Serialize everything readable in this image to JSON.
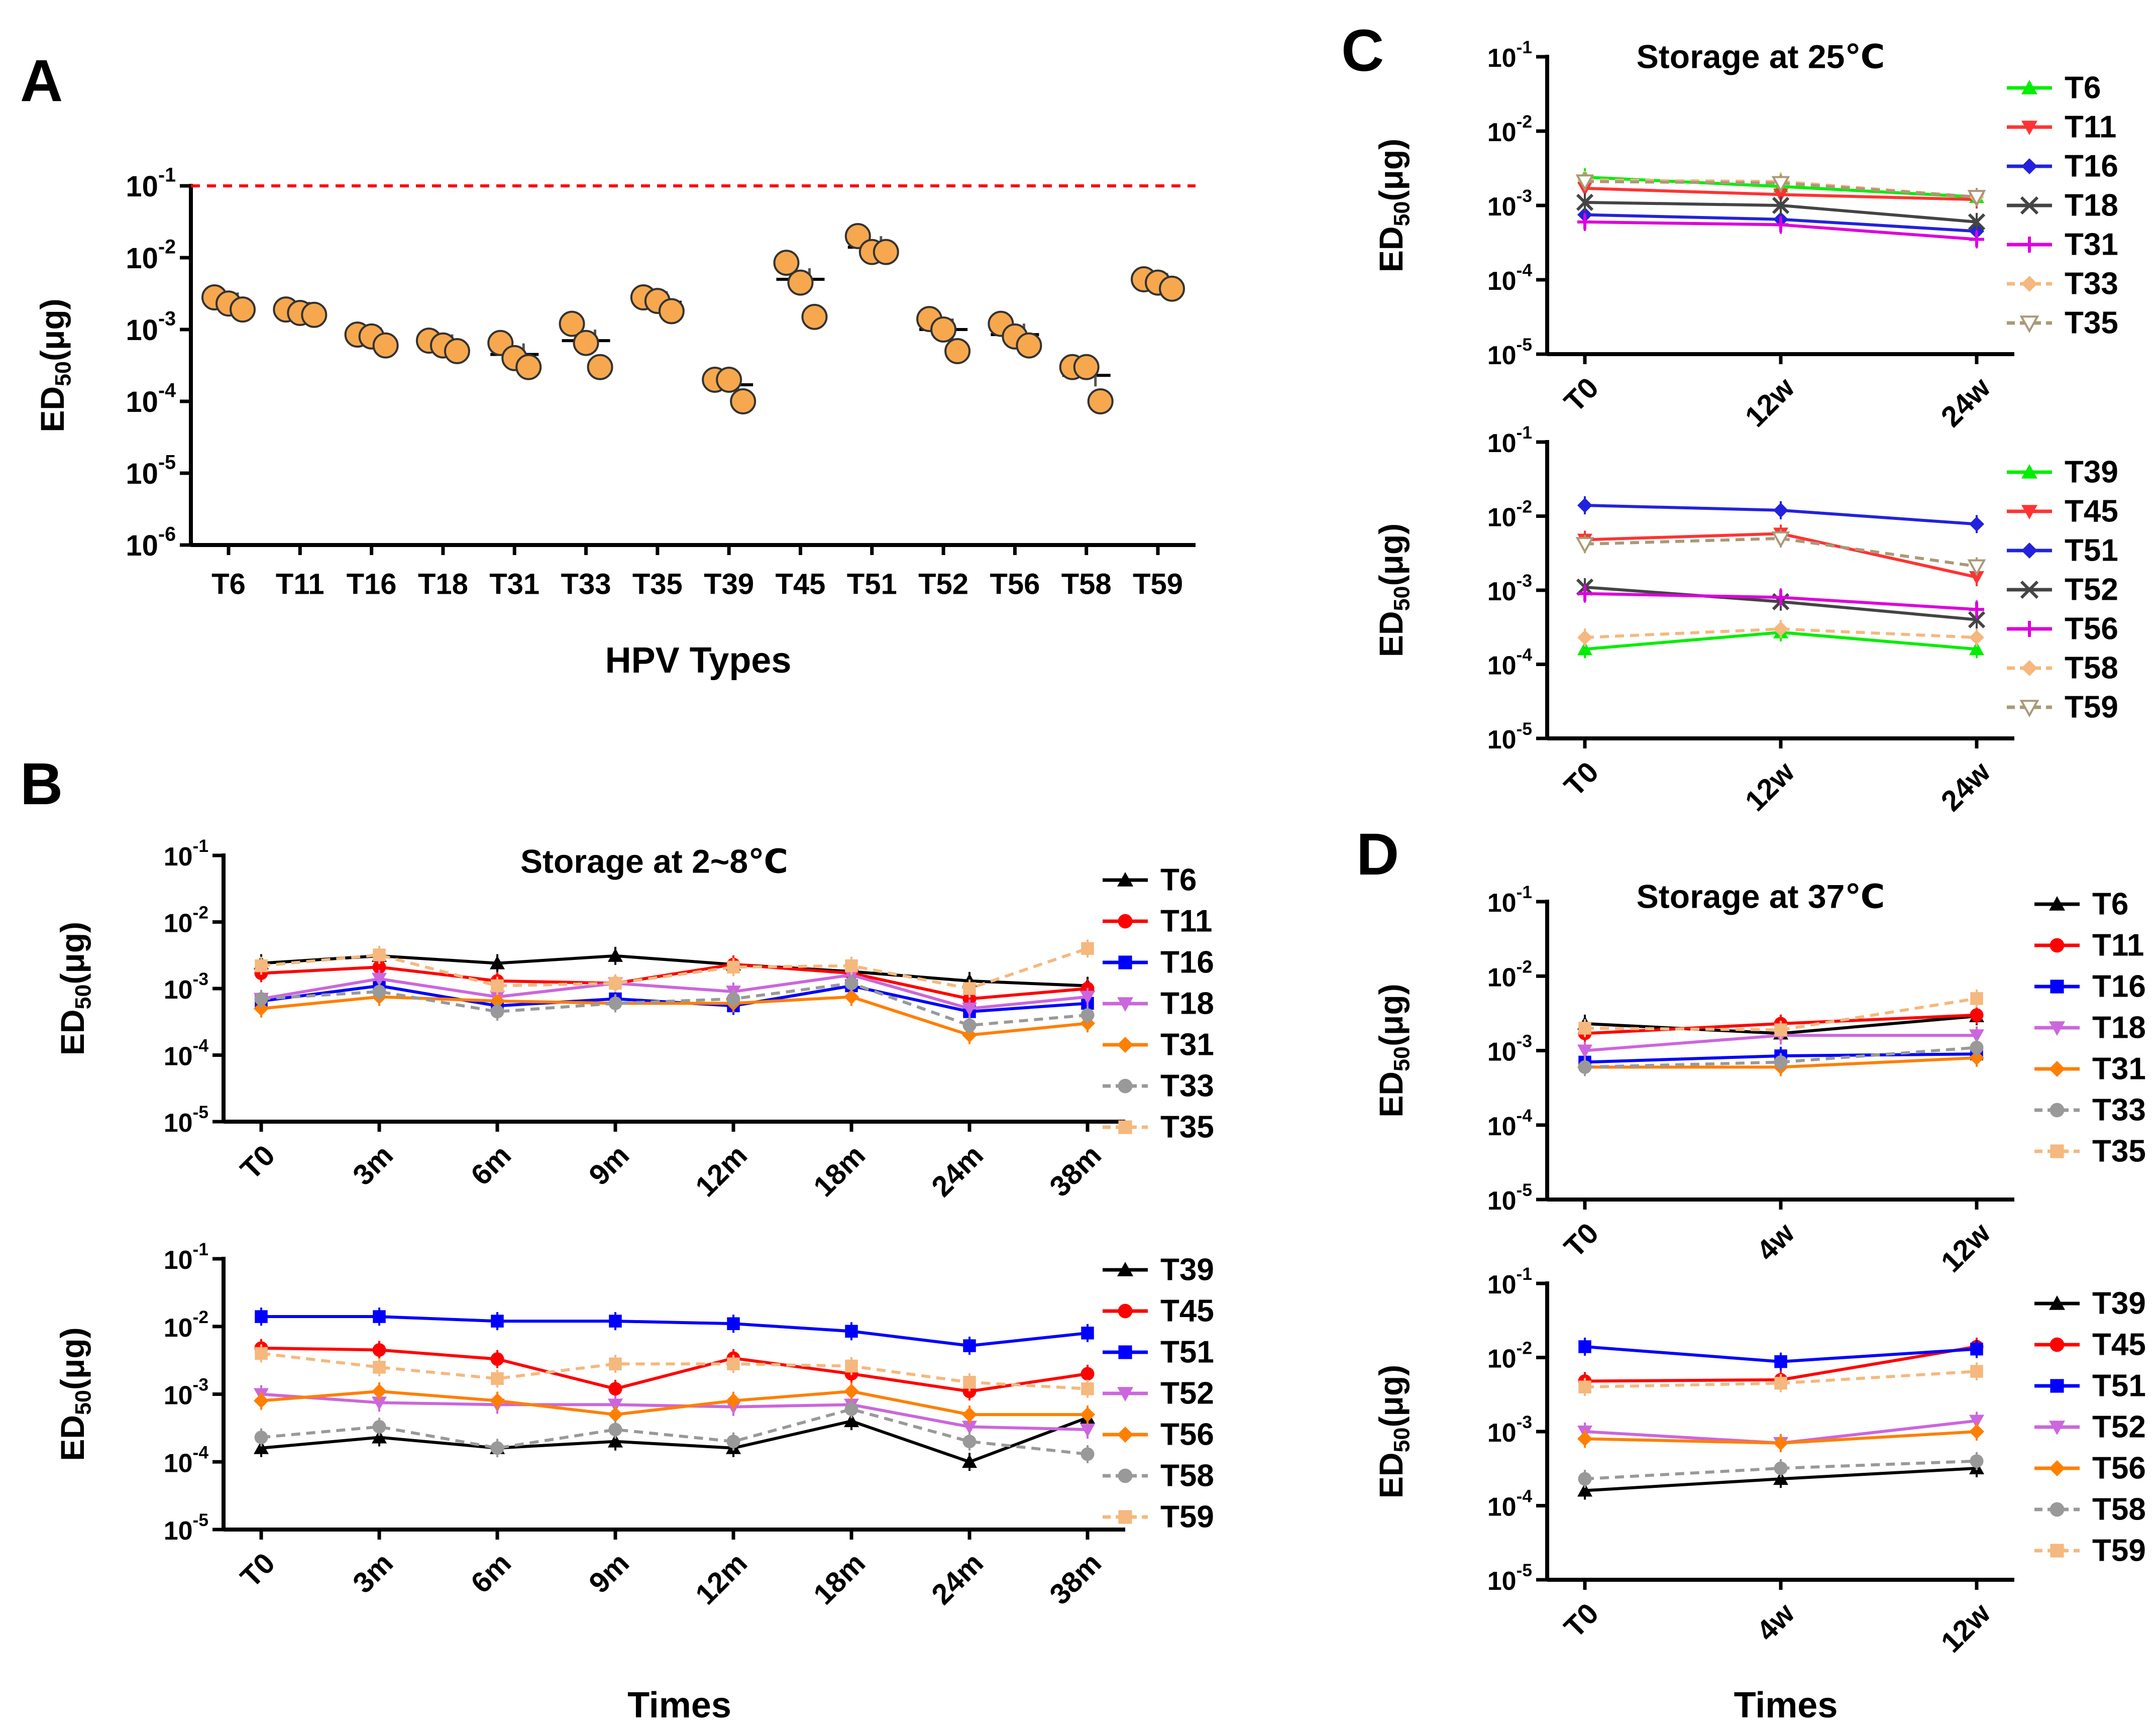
{
  "chart_data": [
    {
      "id": "A",
      "panel_label": "A",
      "type": "scatter",
      "title": "",
      "xlabel": "HPV Types",
      "ylabel": "ED50(μg)",
      "yscale": "log",
      "ylim": [
        1e-06,
        0.1
      ],
      "ytick_exponents": [
        -1,
        -2,
        -3,
        -4,
        -5,
        -6
      ],
      "reference_line": 0.1,
      "categories": [
        "T6",
        "T11",
        "T16",
        "T18",
        "T31",
        "T33",
        "T35",
        "T39",
        "T45",
        "T51",
        "T52",
        "T56",
        "T58",
        "T59"
      ],
      "points": [
        [
          0.0028,
          0.0023,
          0.0019
        ],
        [
          0.0019,
          0.0017,
          0.0016
        ],
        [
          0.00085,
          0.0008,
          0.0006
        ],
        [
          0.0007,
          0.0006,
          0.0005
        ],
        [
          0.00065,
          0.0004,
          0.0003
        ],
        [
          0.0012,
          0.00065,
          0.0003
        ],
        [
          0.0028,
          0.0025,
          0.0018
        ],
        [
          0.0002,
          0.0002,
          0.0001
        ],
        [
          0.0085,
          0.0045,
          0.0015
        ],
        [
          0.02,
          0.012,
          0.012
        ],
        [
          0.0014,
          0.001,
          0.0005
        ],
        [
          0.0012,
          0.0008,
          0.0006
        ],
        [
          0.0003,
          0.0003,
          0.0001
        ],
        [
          0.005,
          0.0045,
          0.0037
        ]
      ],
      "means": [
        0.0023,
        0.0017,
        0.00075,
        0.0006,
        0.00045,
        0.0007,
        0.0024,
        0.00017,
        0.005,
        0.014,
        0.001,
        0.00085,
        0.00023,
        0.0043
      ]
    },
    {
      "id": "B1",
      "panel_label": "B",
      "type": "line",
      "title": "Storage at 2~8℃",
      "xlabel": "",
      "ylabel": "ED50(μg)",
      "yscale": "log",
      "ylim": [
        1e-05,
        0.1
      ],
      "ytick_exponents": [
        -1,
        -2,
        -3,
        -4,
        -5
      ],
      "categories": [
        "T0",
        "3m",
        "6m",
        "9m",
        "12m",
        "18m",
        "24m",
        "38m"
      ],
      "series": [
        {
          "name": "T6",
          "color": "#000000",
          "marker": "triangle-up",
          "dash": false,
          "values": [
            0.0024,
            0.0031,
            0.0024,
            0.0031,
            0.0023,
            0.0018,
            0.0013,
            0.0011
          ]
        },
        {
          "name": "T11",
          "color": "#ff0000",
          "marker": "circle",
          "dash": false,
          "values": [
            0.0017,
            0.0021,
            0.0013,
            0.0012,
            0.0023,
            0.0017,
            0.0007,
            0.001
          ]
        },
        {
          "name": "T16",
          "color": "#0000ff",
          "marker": "square",
          "dash": false,
          "values": [
            0.00065,
            0.0011,
            0.00055,
            0.0007,
            0.00055,
            0.0011,
            0.00045,
            0.0006
          ]
        },
        {
          "name": "T18",
          "color": "#cc66dd",
          "marker": "triangle-down",
          "dash": false,
          "values": [
            0.0007,
            0.0014,
            0.00075,
            0.0012,
            0.0009,
            0.0016,
            0.0005,
            0.00075
          ]
        },
        {
          "name": "T31",
          "color": "#ff7f00",
          "marker": "diamond",
          "dash": false,
          "values": [
            0.0005,
            0.00075,
            0.00065,
            0.0006,
            0.0006,
            0.00075,
            0.0002,
            0.0003
          ]
        },
        {
          "name": "T33",
          "color": "#999999",
          "marker": "circle",
          "dash": true,
          "values": [
            0.0007,
            0.0009,
            0.00045,
            0.0006,
            0.0007,
            0.0012,
            0.00028,
            0.0004
          ]
        },
        {
          "name": "T35",
          "color": "#f5b87e",
          "marker": "square",
          "dash": true,
          "values": [
            0.0022,
            0.0032,
            0.0011,
            0.0012,
            0.0021,
            0.0022,
            0.001,
            0.004
          ]
        }
      ]
    },
    {
      "id": "B2",
      "panel_label": "",
      "type": "line",
      "title": "",
      "xlabel": "Times",
      "ylabel": "ED50(μg)",
      "yscale": "log",
      "ylim": [
        1e-05,
        0.1
      ],
      "ytick_exponents": [
        -1,
        -2,
        -3,
        -4,
        -5
      ],
      "categories": [
        "T0",
        "3m",
        "6m",
        "9m",
        "12m",
        "18m",
        "24m",
        "38m"
      ],
      "series": [
        {
          "name": "T39",
          "color": "#000000",
          "marker": "triangle-up",
          "dash": false,
          "values": [
            0.00016,
            0.00023,
            0.00016,
            0.0002,
            0.00016,
            0.0004,
            0.0001,
            0.00045
          ]
        },
        {
          "name": "T45",
          "color": "#ff0000",
          "marker": "circle",
          "dash": false,
          "values": [
            0.0048,
            0.0045,
            0.0033,
            0.0012,
            0.0034,
            0.002,
            0.0011,
            0.002
          ]
        },
        {
          "name": "T51",
          "color": "#0000ff",
          "marker": "square",
          "dash": false,
          "values": [
            0.014,
            0.014,
            0.012,
            0.012,
            0.011,
            0.0085,
            0.0052,
            0.008
          ]
        },
        {
          "name": "T52",
          "color": "#cc66dd",
          "marker": "triangle-down",
          "dash": false,
          "values": [
            0.001,
            0.00075,
            0.0007,
            0.0007,
            0.00065,
            0.0007,
            0.00033,
            0.0003
          ]
        },
        {
          "name": "T56",
          "color": "#ff7f00",
          "marker": "diamond",
          "dash": false,
          "values": [
            0.0008,
            0.0011,
            0.0008,
            0.0005,
            0.0008,
            0.0011,
            0.0005,
            0.0005
          ]
        },
        {
          "name": "T58",
          "color": "#999999",
          "marker": "circle",
          "dash": true,
          "values": [
            0.00023,
            0.00033,
            0.00016,
            0.0003,
            0.0002,
            0.0006,
            0.0002,
            0.00013
          ]
        },
        {
          "name": "T59",
          "color": "#f5b87e",
          "marker": "square",
          "dash": true,
          "values": [
            0.004,
            0.0025,
            0.0017,
            0.0028,
            0.0028,
            0.0026,
            0.0015,
            0.0012
          ]
        }
      ]
    },
    {
      "id": "C1",
      "panel_label": "C",
      "type": "line",
      "title": "Storage at 25℃",
      "xlabel": "",
      "ylabel": "ED50(μg)",
      "yscale": "log",
      "ylim": [
        1e-05,
        0.1
      ],
      "ytick_exponents": [
        -1,
        -2,
        -3,
        -4,
        -5
      ],
      "categories": [
        "T0",
        "12w",
        "24w"
      ],
      "series": [
        {
          "name": "T6",
          "color": "#00ee00",
          "marker": "triangle-up",
          "dash": false,
          "values": [
            0.0024,
            0.0018,
            0.0013
          ]
        },
        {
          "name": "T11",
          "color": "#ff3333",
          "marker": "triangle-down",
          "dash": false,
          "values": [
            0.0017,
            0.0014,
            0.0012
          ]
        },
        {
          "name": "T16",
          "color": "#2222dd",
          "marker": "diamond",
          "dash": false,
          "values": [
            0.00075,
            0.00065,
            0.00045
          ]
        },
        {
          "name": "T18",
          "color": "#444444",
          "marker": "x",
          "dash": false,
          "values": [
            0.0011,
            0.001,
            0.0006
          ]
        },
        {
          "name": "T31",
          "color": "#dd00dd",
          "marker": "plus",
          "dash": false,
          "values": [
            0.0006,
            0.00055,
            0.00035
          ]
        },
        {
          "name": "T33",
          "color": "#f5b87e",
          "marker": "diamond",
          "dash": true,
          "values": [
            0.0022,
            0.0021,
            0.0013
          ]
        },
        {
          "name": "T35",
          "color": "#aa9977",
          "marker": "triangle-down-open",
          "dash": true,
          "values": [
            0.0021,
            0.002,
            0.0013
          ]
        }
      ]
    },
    {
      "id": "C2",
      "panel_label": "",
      "type": "line",
      "title": "",
      "xlabel": "",
      "ylabel": "ED50(μg)",
      "yscale": "log",
      "ylim": [
        1e-05,
        0.1
      ],
      "ytick_exponents": [
        -1,
        -2,
        -3,
        -4,
        -5
      ],
      "categories": [
        "T0",
        "12w",
        "24w"
      ],
      "series": [
        {
          "name": "T39",
          "color": "#00ee00",
          "marker": "triangle-up",
          "dash": false,
          "values": [
            0.00016,
            0.00027,
            0.00016
          ]
        },
        {
          "name": "T45",
          "color": "#ff3333",
          "marker": "triangle-down",
          "dash": false,
          "values": [
            0.0048,
            0.0058,
            0.0015
          ]
        },
        {
          "name": "T51",
          "color": "#2222dd",
          "marker": "diamond",
          "dash": false,
          "values": [
            0.014,
            0.012,
            0.0078
          ]
        },
        {
          "name": "T52",
          "color": "#444444",
          "marker": "x",
          "dash": false,
          "values": [
            0.0011,
            0.0007,
            0.0004
          ]
        },
        {
          "name": "T56",
          "color": "#dd00dd",
          "marker": "plus",
          "dash": false,
          "values": [
            0.0009,
            0.0008,
            0.00055
          ]
        },
        {
          "name": "T58",
          "color": "#f5b87e",
          "marker": "diamond",
          "dash": true,
          "values": [
            0.00023,
            0.0003,
            0.00023
          ]
        },
        {
          "name": "T59",
          "color": "#aa9977",
          "marker": "triangle-down-open",
          "dash": true,
          "values": [
            0.0042,
            0.005,
            0.0021
          ]
        }
      ]
    },
    {
      "id": "D1",
      "panel_label": "D",
      "type": "line",
      "title": "Storage at 37℃",
      "xlabel": "",
      "ylabel": "ED50(μg)",
      "yscale": "log",
      "ylim": [
        1e-05,
        0.1
      ],
      "ytick_exponents": [
        -1,
        -2,
        -3,
        -4,
        -5
      ],
      "categories": [
        "T0",
        "4w",
        "12w"
      ],
      "series": [
        {
          "name": "T6",
          "color": "#000000",
          "marker": "triangle-up",
          "dash": false,
          "values": [
            0.0023,
            0.0017,
            0.0029
          ]
        },
        {
          "name": "T11",
          "color": "#ff0000",
          "marker": "circle",
          "dash": false,
          "values": [
            0.0017,
            0.0023,
            0.003
          ]
        },
        {
          "name": "T16",
          "color": "#0000ff",
          "marker": "square",
          "dash": false,
          "values": [
            0.0007,
            0.00085,
            0.0009
          ]
        },
        {
          "name": "T18",
          "color": "#cc66dd",
          "marker": "triangle-down",
          "dash": false,
          "values": [
            0.001,
            0.0016,
            0.0016
          ]
        },
        {
          "name": "T31",
          "color": "#ff7f00",
          "marker": "diamond",
          "dash": false,
          "values": [
            0.0006,
            0.0006,
            0.0008
          ]
        },
        {
          "name": "T33",
          "color": "#999999",
          "marker": "circle",
          "dash": true,
          "values": [
            0.0006,
            0.0007,
            0.0011
          ]
        },
        {
          "name": "T35",
          "color": "#f5b87e",
          "marker": "square",
          "dash": true,
          "values": [
            0.002,
            0.0019,
            0.005
          ]
        }
      ]
    },
    {
      "id": "D2",
      "panel_label": "",
      "type": "line",
      "title": "",
      "xlabel": "Times",
      "ylabel": "ED50(μg)",
      "yscale": "log",
      "ylim": [
        1e-05,
        0.1
      ],
      "ytick_exponents": [
        -1,
        -2,
        -3,
        -4,
        -5
      ],
      "categories": [
        "T0",
        "4w",
        "12w"
      ],
      "series": [
        {
          "name": "T39",
          "color": "#000000",
          "marker": "triangle-up",
          "dash": false,
          "values": [
            0.00016,
            0.00023,
            0.00032
          ]
        },
        {
          "name": "T45",
          "color": "#ff0000",
          "marker": "circle",
          "dash": false,
          "values": [
            0.0048,
            0.005,
            0.014
          ]
        },
        {
          "name": "T51",
          "color": "#0000ff",
          "marker": "square",
          "dash": false,
          "values": [
            0.014,
            0.0088,
            0.013
          ]
        },
        {
          "name": "T52",
          "color": "#cc66dd",
          "marker": "triangle-down",
          "dash": false,
          "values": [
            0.001,
            0.0007,
            0.0014
          ]
        },
        {
          "name": "T56",
          "color": "#ff7f00",
          "marker": "diamond",
          "dash": false,
          "values": [
            0.0008,
            0.0007,
            0.001
          ]
        },
        {
          "name": "T58",
          "color": "#999999",
          "marker": "circle",
          "dash": true,
          "values": [
            0.00023,
            0.00032,
            0.0004
          ]
        },
        {
          "name": "T59",
          "color": "#f5b87e",
          "marker": "square",
          "dash": true,
          "values": [
            0.004,
            0.0045,
            0.0065
          ]
        }
      ]
    }
  ]
}
